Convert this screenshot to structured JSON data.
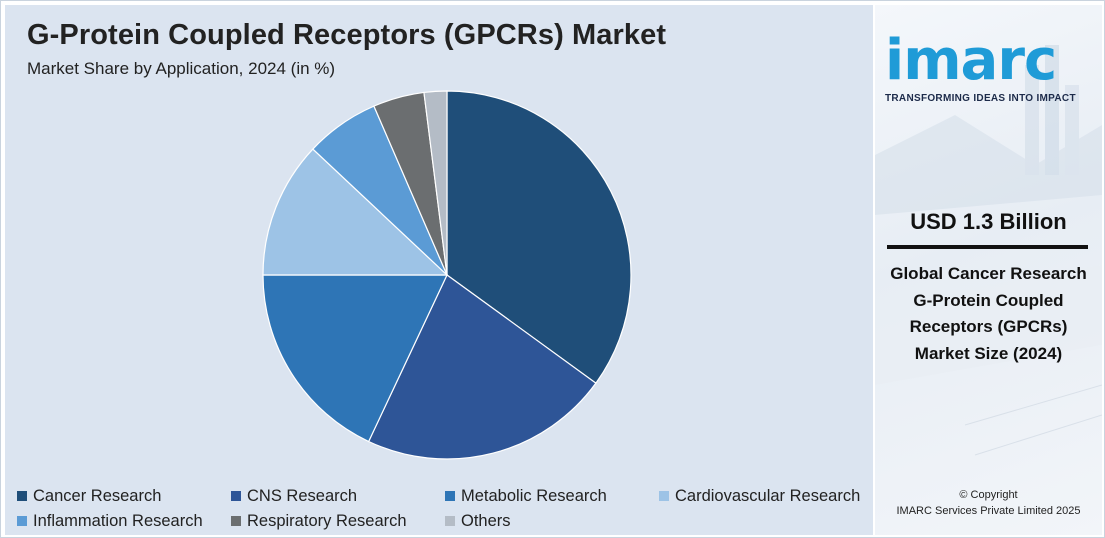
{
  "header": {
    "title": "G-Protein Coupled Receptors (GPCRs) Market",
    "subtitle": "Market Share by Application, 2024 (in %)"
  },
  "chart_data": {
    "type": "pie",
    "title": "G-Protein Coupled Receptors (GPCRs) Market",
    "subtitle": "Market Share by Application, 2024 (in %)",
    "categories": [
      "Cancer Research",
      "CNS Research",
      "Metabolic Research",
      "Cardiovascular Research",
      "Inflammation Research",
      "Respiratory Research",
      "Others"
    ],
    "values": [
      35,
      22,
      18,
      12,
      6.5,
      4.5,
      2
    ],
    "colors": [
      "#1f4e79",
      "#2e5597",
      "#2e75b6",
      "#9dc3e6",
      "#5b9bd5",
      "#6b6e70",
      "#b4bcc6"
    ],
    "start_angle_deg": 0,
    "direction": "clockwise",
    "legend_position": "bottom"
  },
  "legend": {
    "items": [
      "Cancer Research",
      "CNS Research",
      "Metabolic Research",
      "Cardiovascular Research",
      "Inflammation Research",
      "Respiratory Research",
      "Others"
    ]
  },
  "sidebar": {
    "logo_text": "imarc",
    "tagline": "TRANSFORMING IDEAS INTO IMPACT",
    "stat_value": "USD 1.3 Billion",
    "stat_description": "Global Cancer Research G-Protein Coupled Receptors (GPCRs) Market Size (2024)",
    "copyright_line1": "© Copyright",
    "copyright_line2": "IMARC Services Private Limited 2025"
  },
  "colors": {
    "panel_background": "#dbe4f0",
    "logo_blue": "#1f9bd7"
  }
}
